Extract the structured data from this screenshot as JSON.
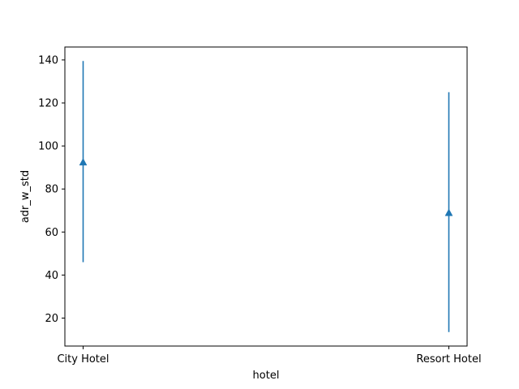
{
  "chart_data": {
    "type": "scatter",
    "title": "",
    "xlabel": "hotel",
    "ylabel": "adr_w_std",
    "categories": [
      "City Hotel",
      "Resort Hotel"
    ],
    "series": [
      {
        "values": [
          92.5,
          69.0
        ],
        "lower": [
          46.0,
          13.5
        ],
        "upper": [
          139.5,
          125.0
        ],
        "marker": "triangle-up",
        "color": "#1f77b4"
      }
    ],
    "ylim": [
      7.0,
      146.0
    ],
    "yticks": [
      20,
      40,
      60,
      80,
      100,
      120,
      140
    ],
    "grid": false,
    "legend": false
  }
}
